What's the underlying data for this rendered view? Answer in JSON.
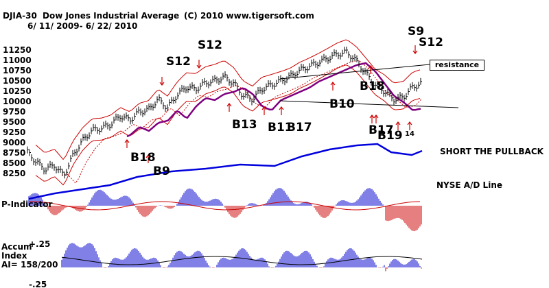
{
  "header": {
    "symbol": "DJIA-30",
    "name": "Dow Jones Industrial Average",
    "copyright": "(C) 2010 www.tigersoft.com",
    "date_range": "6/ 11/ 2009- 6/ 22/ 2010"
  },
  "signals": [
    {
      "label": "S12",
      "size": "big"
    },
    {
      "label": "S12",
      "size": "big"
    },
    {
      "label": "S9",
      "size": "big"
    },
    {
      "label": "S12",
      "size": "big"
    },
    {
      "label": "B18",
      "size": "big"
    },
    {
      "label": "B9",
      "size": "big"
    },
    {
      "label": "B13",
      "size": "big"
    },
    {
      "label": "B11",
      "size": "big"
    },
    {
      "label": "B17",
      "size": "big"
    },
    {
      "label": "B10",
      "size": "big"
    },
    {
      "label": "B18",
      "size": "big"
    },
    {
      "label": "B17",
      "size": "big"
    },
    {
      "label": "B19",
      "size": "big"
    },
    {
      "label": "14",
      "size": "sm"
    }
  ],
  "annotations": {
    "resistance": "resistance",
    "short_pullback": "SHORT THE PULLBACK",
    "ad_line": "NYSE A/D Line",
    "p_indicator": "P-Indicator",
    "accum_line1": "Accum",
    "accum_line2": "Index",
    "accum_ai": "AI= 158/200",
    "accum_top": "+.25",
    "accum_bottom": "-.25"
  },
  "colors": {
    "price_bars": "#000000",
    "band": "#cc0000",
    "ma_purple": "#800080",
    "ad_line": "#0000dd",
    "histogram_pos": "#0000cc",
    "histogram_neg": "#cc0000",
    "arrow": "#cc0000"
  },
  "chart_data": {
    "type": "line",
    "title": "Dow Jones Industrial Average",
    "date_range": "6/ 11/ 2009- 6/ 22/ 2010",
    "yticks": [
      8250,
      8500,
      8750,
      9000,
      9250,
      9500,
      9750,
      10000,
      10250,
      10500,
      10750,
      11000,
      11250
    ],
    "ylim": [
      8100,
      11400
    ],
    "series": [
      {
        "name": "DJIA-30",
        "x": [
          0,
          6,
          12,
          18,
          24,
          30,
          36,
          42,
          48,
          54,
          60,
          66,
          72,
          78,
          84,
          90,
          96,
          102,
          108,
          114,
          120,
          126,
          132,
          138,
          144,
          150,
          156,
          162,
          168,
          174,
          180,
          186,
          192,
          198,
          204,
          210,
          216,
          222,
          228,
          234,
          240,
          246,
          252
        ],
        "values": [
          8800,
          8550,
          8350,
          8450,
          8200,
          8700,
          9050,
          9300,
          9350,
          9450,
          9650,
          9550,
          9750,
          9800,
          10050,
          9850,
          10150,
          10350,
          10300,
          10450,
          10500,
          10600,
          10450,
          10150,
          10050,
          10300,
          10400,
          10500,
          10600,
          10750,
          10850,
          10950,
          11050,
          11150,
          11200,
          11000,
          10700,
          10400,
          10250,
          10050,
          10100,
          10350,
          10450
        ]
      }
    ],
    "resistance_level": 10650,
    "support_level": 9900
  }
}
